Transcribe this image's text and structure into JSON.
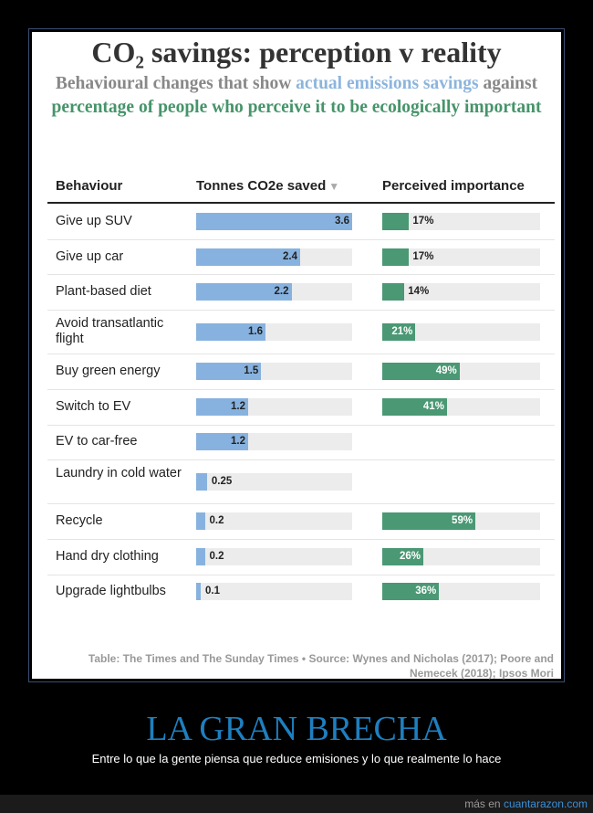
{
  "chart_data": {
    "type": "table",
    "title": "CO₂ savings: perception v reality",
    "subtitle": {
      "part1": "Behavioural changes that show ",
      "blue": "actual emissions savings",
      "part2": " against ",
      "green": "percentage of people who perceive it to be ecologically important"
    },
    "columns": [
      "Behaviour",
      "Tonnes CO2e saved",
      "Perceived importance"
    ],
    "sort_indicator": "▼",
    "max_tonnes": 3.6,
    "rows": [
      {
        "behaviour": "Give up SUV",
        "tonnes": 3.6,
        "tonnes_label": "3.6",
        "perceived": 17,
        "perceived_label": "17%"
      },
      {
        "behaviour": "Give up car",
        "tonnes": 2.4,
        "tonnes_label": "2.4",
        "perceived": 17,
        "perceived_label": "17%"
      },
      {
        "behaviour": "Plant-based diet",
        "tonnes": 2.2,
        "tonnes_label": "2.2",
        "perceived": 14,
        "perceived_label": "14%"
      },
      {
        "behaviour": "Avoid transatlantic flight",
        "tonnes": 1.6,
        "tonnes_label": "1.6",
        "perceived": 21,
        "perceived_label": "21%"
      },
      {
        "behaviour": "Buy green energy",
        "tonnes": 1.5,
        "tonnes_label": "1.5",
        "perceived": 49,
        "perceived_label": "49%"
      },
      {
        "behaviour": "Switch to EV",
        "tonnes": 1.2,
        "tonnes_label": "1.2",
        "perceived": 41,
        "perceived_label": "41%"
      },
      {
        "behaviour": "EV to car-free",
        "tonnes": 1.2,
        "tonnes_label": "1.2",
        "perceived": null,
        "perceived_label": ""
      },
      {
        "behaviour": "Laundry in cold water",
        "tonnes": 0.25,
        "tonnes_label": "0.25",
        "perceived": null,
        "perceived_label": ""
      },
      {
        "behaviour": "Recycle",
        "tonnes": 0.2,
        "tonnes_label": "0.2",
        "perceived": 59,
        "perceived_label": "59%"
      },
      {
        "behaviour": "Hand dry clothing",
        "tonnes": 0.2,
        "tonnes_label": "0.2",
        "perceived": 26,
        "perceived_label": "26%"
      },
      {
        "behaviour": "Upgrade lightbulbs",
        "tonnes": 0.1,
        "tonnes_label": "0.1",
        "perceived": 36,
        "perceived_label": "36%"
      }
    ],
    "source": "Table: The Times and The Sunday Times • Source: Wynes and Nicholas (2017); Poore and Nemecek (2018); Ipsos Mori"
  },
  "colors": {
    "actual": "#87b2df",
    "perceived": "#4a9874",
    "track": "#ececec"
  },
  "caption": {
    "title": "LA GRAN BRECHA",
    "subtitle": "Entre lo que la gente piensa que reduce emisiones y lo que realmente lo hace"
  },
  "footer": {
    "prefix": "más en ",
    "link": "cuantarazon.com"
  }
}
